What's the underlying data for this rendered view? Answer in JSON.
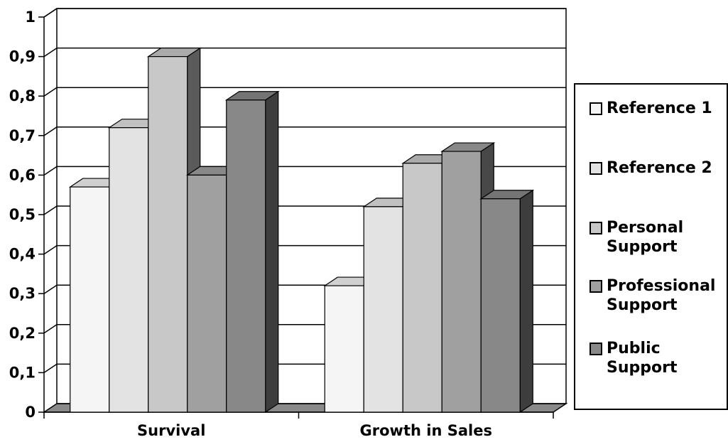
{
  "chart_data": {
    "type": "bar",
    "style": "3d-clustered-column",
    "categories": [
      "Survival",
      "Growth in Sales"
    ],
    "series": [
      {
        "name": "Reference 1",
        "color": "#f5f5f5",
        "values": [
          0.57,
          0.32
        ]
      },
      {
        "name": "Reference 2",
        "color": "#e3e3e3",
        "values": [
          0.72,
          0.52
        ]
      },
      {
        "name": "Personal Support",
        "color": "#c8c8c8",
        "values": [
          0.9,
          0.63
        ]
      },
      {
        "name": "Professional Support",
        "color": "#a0a0a0",
        "values": [
          0.6,
          0.66
        ]
      },
      {
        "name": "Public Support",
        "color": "#888888",
        "values": [
          0.79,
          0.54
        ]
      }
    ],
    "yticks": [
      "0",
      "0,1",
      "0,2",
      "0,3",
      "0,4",
      "0,5",
      "0,6",
      "0,7",
      "0,8",
      "0,9",
      "1"
    ],
    "ylim": [
      0,
      1
    ],
    "grid": true,
    "legend_position": "right",
    "title": "",
    "xlabel": "",
    "ylabel": ""
  },
  "legend": {
    "items": [
      {
        "label": "Reference 1",
        "color": "#f5f5f5"
      },
      {
        "label": "Reference 2",
        "color": "#e3e3e3"
      },
      {
        "label": "Personal Support",
        "color": "#c8c8c8"
      },
      {
        "label": "Professional Support",
        "color": "#a0a0a0"
      },
      {
        "label": "Public Support",
        "color": "#888888"
      }
    ]
  }
}
